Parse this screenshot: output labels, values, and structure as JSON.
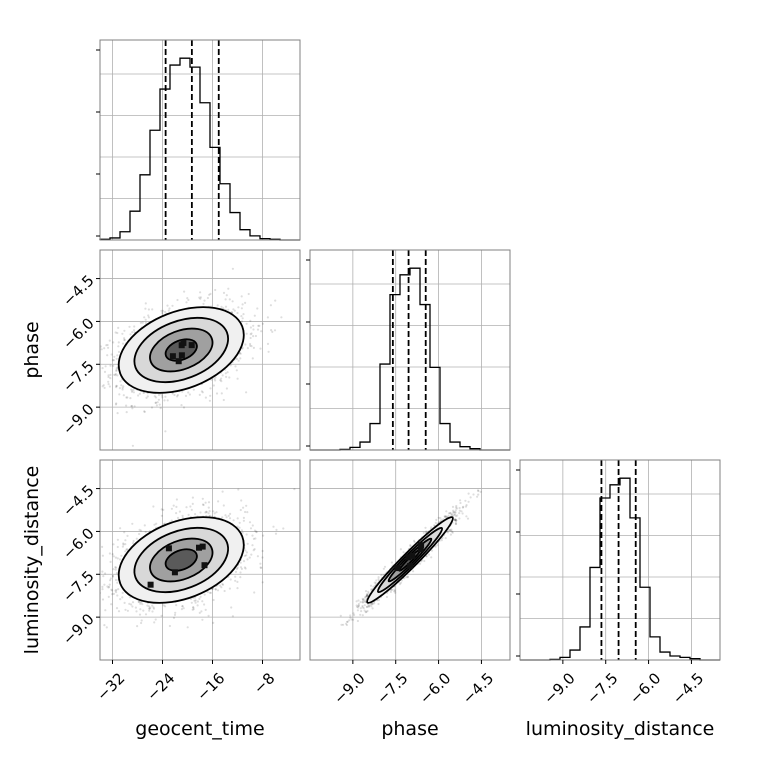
{
  "chart_data": {
    "type": "corner",
    "parameters": [
      "geocent_time",
      "phase",
      "luminosity_distance"
    ],
    "xlabels": [
      "geocent_time",
      "phase",
      "luminosity_distance"
    ],
    "ylabels": [
      "",
      "phase",
      "luminosity_distance"
    ],
    "ranges": {
      "geocent_time": [
        -34,
        -2
      ],
      "phase": [
        -10.5,
        -3.5
      ],
      "luminosity_distance": [
        -10.5,
        -3.5
      ]
    },
    "ticks": {
      "geocent_time": {
        "values": [
          -32,
          -24,
          -16,
          -8
        ],
        "labels": [
          "−32",
          "−24",
          "−16",
          "−8"
        ]
      },
      "phase": {
        "values": [
          -9.0,
          -7.5,
          -6.0,
          -4.5
        ],
        "labels": [
          "−9.0",
          "−7.5",
          "−6.0",
          "−4.5"
        ]
      },
      "luminosity_distance": {
        "values": [
          -9.0,
          -7.5,
          -6.0,
          -4.5
        ],
        "labels": [
          "−9.0",
          "−7.5",
          "−6.0",
          "−4.5"
        ]
      }
    },
    "grid": true,
    "histograms": [
      {
        "parameter": "geocent_time",
        "bin_edges": [
          -34,
          -32.4,
          -30.8,
          -29.2,
          -27.6,
          -26,
          -24.4,
          -22.8,
          -21.2,
          -19.6,
          -18,
          -16.4,
          -14.8,
          -13.2,
          -11.6,
          -10,
          -8.4,
          -6.8,
          -5.2,
          -3.6,
          -2
        ],
        "counts": [
          1,
          3,
          12,
          42,
          95,
          160,
          220,
          255,
          265,
          252,
          200,
          135,
          82,
          40,
          15,
          6,
          2,
          1,
          0,
          0
        ],
        "quantiles": [
          -23.5,
          -19.3,
          -15
        ]
      },
      {
        "parameter": "phase",
        "bin_edges": [
          -10.5,
          -10.15,
          -9.8,
          -9.45,
          -9.1,
          -8.75,
          -8.4,
          -8.05,
          -7.7,
          -7.35,
          -7,
          -6.65,
          -6.3,
          -5.95,
          -5.6,
          -5.25,
          -4.9,
          -4.55,
          -4.2,
          -3.85,
          -3.5
        ],
        "counts": [
          0,
          0,
          0,
          1,
          4,
          12,
          40,
          130,
          235,
          265,
          275,
          220,
          125,
          40,
          12,
          5,
          2,
          0,
          0,
          0
        ],
        "quantiles": [
          -7.6,
          -7.05,
          -6.45
        ]
      },
      {
        "parameter": "luminosity_distance",
        "bin_edges": [
          -10.5,
          -10.15,
          -9.8,
          -9.45,
          -9.1,
          -8.75,
          -8.4,
          -8.05,
          -7.7,
          -7.35,
          -7,
          -6.65,
          -6.3,
          -5.95,
          -5.6,
          -5.25,
          -4.9,
          -4.55,
          -4.2,
          -3.85,
          -3.5
        ],
        "counts": [
          0,
          0,
          0,
          1,
          4,
          15,
          50,
          140,
          245,
          265,
          275,
          215,
          110,
          35,
          12,
          6,
          4,
          2,
          0,
          0
        ],
        "quantiles": [
          -7.65,
          -7.05,
          -6.45
        ]
      }
    ],
    "pairs": [
      {
        "x": "geocent_time",
        "y": "phase",
        "mean": [
          -21,
          -7.0
        ],
        "sd": [
          5.0,
          0.75
        ],
        "corr": 0.35,
        "samples": 2200
      },
      {
        "x": "geocent_time",
        "y": "luminosity_distance",
        "mean": [
          -21,
          -7.0
        ],
        "sd": [
          5.0,
          0.75
        ],
        "corr": 0.35,
        "samples": 2200
      },
      {
        "x": "phase",
        "y": "luminosity_distance",
        "mean": [
          -7.0,
          -7.0
        ],
        "sd": [
          0.75,
          0.75
        ],
        "corr": 0.97,
        "samples": 2200
      }
    ],
    "contour_levels": [
      0.118,
      0.393,
      0.675,
      0.865
    ],
    "colors": {
      "line": "#000000",
      "grid": "#b0b0b0",
      "points": "#000000",
      "density": "#000000"
    }
  }
}
